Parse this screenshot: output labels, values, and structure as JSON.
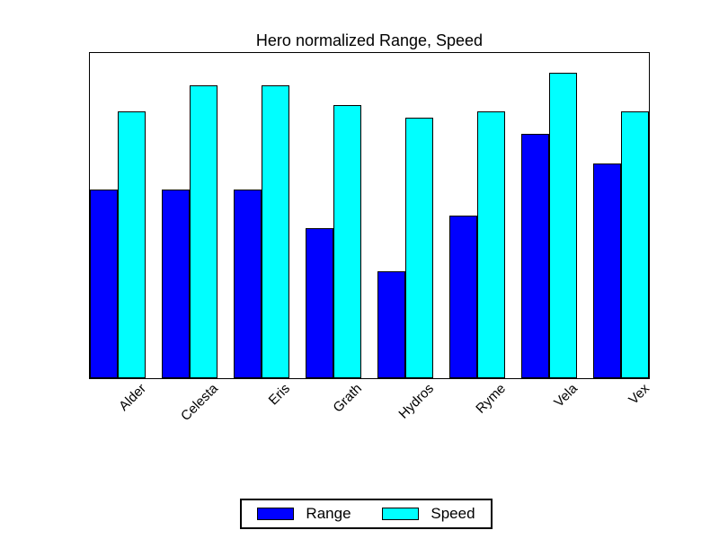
{
  "title": "Hero normalized Range, Speed",
  "chart_data": {
    "type": "bar",
    "title": "Hero normalized Range, Speed",
    "categories": [
      "Alder",
      "Celesta",
      "Eris",
      "Grath",
      "Hydros",
      "Ryme",
      "Vela",
      "Vex"
    ],
    "series": [
      {
        "name": "Range",
        "color": "#0000ff",
        "values": [
          0.58,
          0.58,
          0.58,
          0.46,
          0.33,
          0.5,
          0.75,
          0.66
        ]
      },
      {
        "name": "Speed",
        "color": "#00ffff",
        "values": [
          0.82,
          0.9,
          0.9,
          0.84,
          0.8,
          0.82,
          0.94,
          0.82
        ]
      }
    ],
    "xlabel": "",
    "ylabel": "",
    "ylim": [
      0,
      1
    ],
    "grid": false,
    "y_axis_ticks_visible": false,
    "x_label_rotation_deg": 45,
    "bar_edge_color": "#000000",
    "plot_background": "#ffffff",
    "legend_position": "bottom-center",
    "legend_border_color": "#000000"
  },
  "legend": {
    "items": [
      {
        "label": "Range",
        "color": "#0000ff"
      },
      {
        "label": "Speed",
        "color": "#00ffff"
      }
    ]
  }
}
